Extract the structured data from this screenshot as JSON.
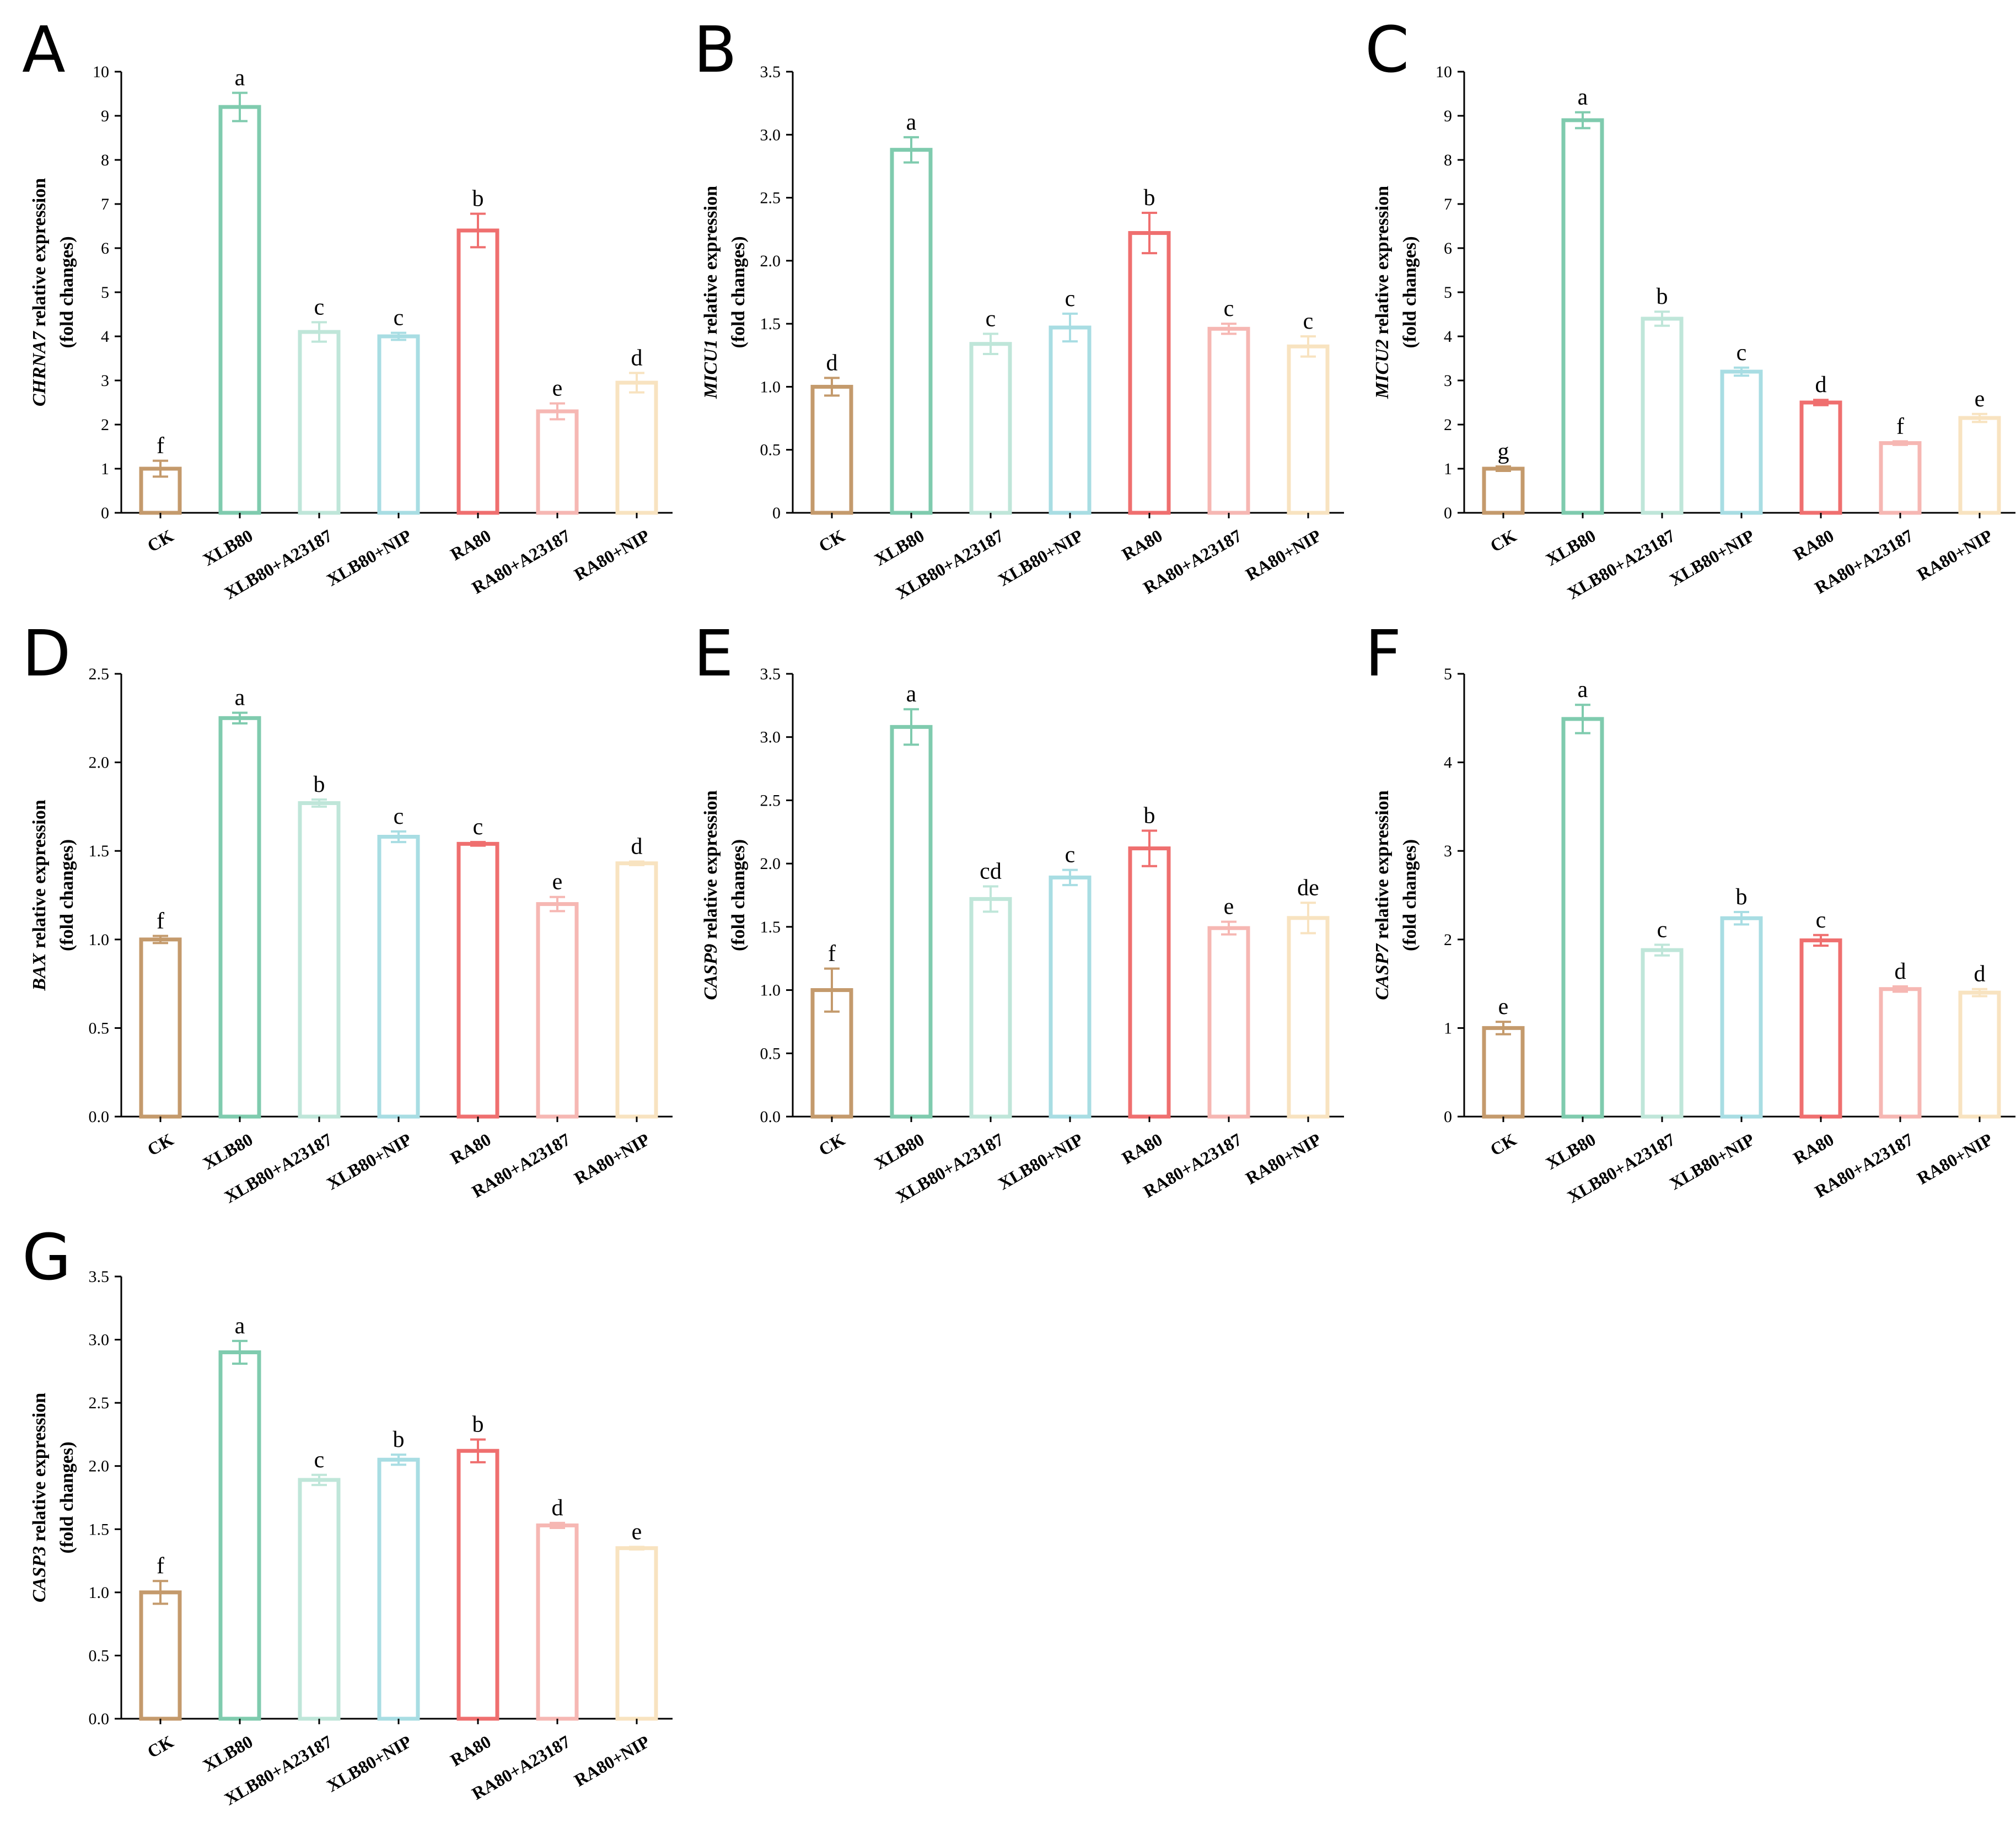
{
  "categories": [
    "CK",
    "XLB80",
    "XLB80+A23187",
    "XLB80+NIP",
    "RA80",
    "RA80+A23187",
    "RA80+NIP"
  ],
  "colors": [
    "#c49a6c",
    "#7fcbae",
    "#bfe6d9",
    "#a8dde3",
    "#ef6f6f",
    "#f6b7b3",
    "#f8e3c0"
  ],
  "chart_data": [
    {
      "type": "bar",
      "panel": "A",
      "gene": "CHRNA7",
      "ylabel_suffix": " relative expression",
      "ylabel_line2": "(fold changes)",
      "ylim": [
        0,
        10
      ],
      "yticks": [
        "0",
        "1",
        "2",
        "3",
        "4",
        "5",
        "6",
        "7",
        "8",
        "9",
        "10"
      ],
      "tick_values": [
        0,
        1,
        2,
        3,
        4,
        5,
        6,
        7,
        8,
        9,
        10
      ],
      "values": [
        1.0,
        9.2,
        4.1,
        4.0,
        6.4,
        2.3,
        2.95
      ],
      "errors": [
        0.18,
        0.32,
        0.22,
        0.08,
        0.38,
        0.18,
        0.22
      ],
      "sig": [
        "f",
        "a",
        "c",
        "c",
        "b",
        "e",
        "d"
      ]
    },
    {
      "type": "bar",
      "panel": "B",
      "gene": "MICU1",
      "ylabel_suffix": " relative expression",
      "ylabel_line2": "(fold changes)",
      "ylim": [
        0,
        3.5
      ],
      "yticks": [
        "0",
        "0.5",
        "1.0",
        "1.5",
        "2.0",
        "2.5",
        "3.0",
        "3.5"
      ],
      "tick_values": [
        0,
        0.5,
        1,
        1.5,
        2,
        2.5,
        3,
        3.5
      ],
      "values": [
        1.0,
        2.88,
        1.34,
        1.47,
        2.22,
        1.46,
        1.32
      ],
      "errors": [
        0.07,
        0.1,
        0.08,
        0.11,
        0.16,
        0.04,
        0.08
      ],
      "sig": [
        "d",
        "a",
        "c",
        "c",
        "b",
        "c",
        "c"
      ]
    },
    {
      "type": "bar",
      "panel": "C",
      "gene": "MICU2",
      "ylabel_suffix": " relative expression",
      "ylabel_line2": "(fold changes)",
      "ylim": [
        0,
        10
      ],
      "yticks": [
        "0",
        "1",
        "2",
        "3",
        "4",
        "5",
        "6",
        "7",
        "8",
        "9",
        "10"
      ],
      "tick_values": [
        0,
        1,
        2,
        3,
        4,
        5,
        6,
        7,
        8,
        9,
        10
      ],
      "values": [
        1.0,
        8.9,
        4.4,
        3.2,
        2.5,
        1.58,
        2.15
      ],
      "errors": [
        0.05,
        0.18,
        0.16,
        0.09,
        0.06,
        0.04,
        0.09
      ],
      "sig": [
        "g",
        "a",
        "b",
        "c",
        "d",
        "f",
        "e"
      ]
    },
    {
      "type": "bar",
      "panel": "D",
      "gene": "BAX",
      "ylabel_suffix": " relative expression",
      "ylabel_line2": "(fold changes)",
      "ylim": [
        0,
        2.5
      ],
      "yticks": [
        "0.0",
        "0.5",
        "1.0",
        "1.5",
        "2.0",
        "2.5"
      ],
      "tick_values": [
        0,
        0.5,
        1,
        1.5,
        2,
        2.5
      ],
      "values": [
        1.0,
        2.25,
        1.77,
        1.58,
        1.54,
        1.2,
        1.43
      ],
      "errors": [
        0.02,
        0.03,
        0.02,
        0.03,
        0.01,
        0.04,
        0.01
      ],
      "sig": [
        "f",
        "a",
        "b",
        "c",
        "c",
        "e",
        "d"
      ]
    },
    {
      "type": "bar",
      "panel": "E",
      "gene": "CASP9",
      "ylabel_suffix": " relative expression",
      "ylabel_line2": "(fold changes)",
      "ylim": [
        0,
        3.5
      ],
      "yticks": [
        "0.0",
        "0.5",
        "1.0",
        "1.5",
        "2.0",
        "2.5",
        "3.0",
        "3.5"
      ],
      "tick_values": [
        0,
        0.5,
        1,
        1.5,
        2,
        2.5,
        3,
        3.5
      ],
      "values": [
        1.0,
        3.08,
        1.72,
        1.89,
        2.12,
        1.49,
        1.57
      ],
      "errors": [
        0.17,
        0.14,
        0.1,
        0.06,
        0.14,
        0.05,
        0.12
      ],
      "sig": [
        "f",
        "a",
        "cd",
        "c",
        "b",
        "e",
        "de"
      ]
    },
    {
      "type": "bar",
      "panel": "F",
      "gene": "CASP7",
      "ylabel_suffix": " relative expression",
      "ylabel_line2": "(fold changes)",
      "ylim": [
        0,
        5
      ],
      "yticks": [
        "0",
        "1",
        "2",
        "3",
        "4",
        "5"
      ],
      "tick_values": [
        0,
        1,
        2,
        3,
        4,
        5
      ],
      "values": [
        1.0,
        4.49,
        1.88,
        2.24,
        1.99,
        1.44,
        1.4
      ],
      "errors": [
        0.07,
        0.16,
        0.06,
        0.07,
        0.06,
        0.03,
        0.04
      ],
      "sig": [
        "e",
        "a",
        "c",
        "b",
        "c",
        "d",
        "d"
      ]
    },
    {
      "type": "bar",
      "panel": "G",
      "gene": "CASP3",
      "ylabel_suffix": " relative expression",
      "ylabel_line2": "(fold changes)",
      "ylim": [
        0,
        3.5
      ],
      "yticks": [
        "0.0",
        "0.5",
        "1.0",
        "1.5",
        "2.0",
        "2.5",
        "3.0",
        "3.5"
      ],
      "tick_values": [
        0,
        0.5,
        1,
        1.5,
        2,
        2.5,
        3,
        3.5
      ],
      "values": [
        1.0,
        2.9,
        1.89,
        2.05,
        2.12,
        1.53,
        1.35
      ],
      "errors": [
        0.09,
        0.09,
        0.04,
        0.04,
        0.09,
        0.02,
        0.01
      ],
      "sig": [
        "f",
        "a",
        "c",
        "b",
        "b",
        "d",
        "e"
      ]
    }
  ]
}
